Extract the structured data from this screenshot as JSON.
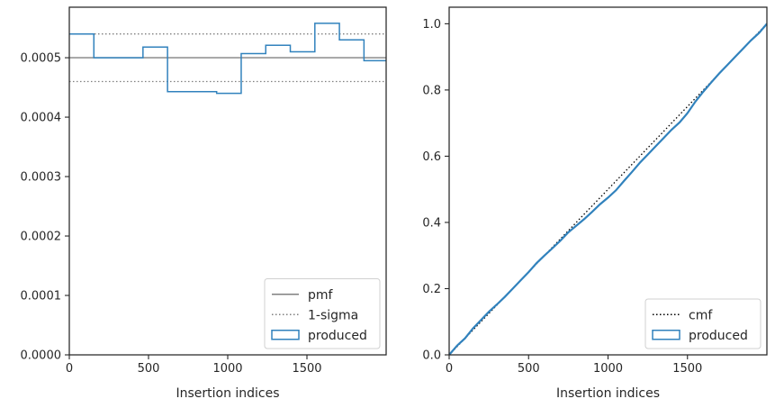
{
  "chart_data": [
    {
      "type": "step",
      "title": "",
      "xlabel": "Insertion indices",
      "ylabel": "",
      "xlim": [
        0,
        2000
      ],
      "ylim": [
        0,
        0.000585
      ],
      "xticks": [
        0,
        500,
        1000,
        1500
      ],
      "xtick_labels": [
        "0",
        "500",
        "1000",
        "1500"
      ],
      "yticks": [
        0,
        0.0001,
        0.0002,
        0.0003,
        0.0004,
        0.0005
      ],
      "ytick_labels": [
        "0.0000",
        "0.0001",
        "0.0002",
        "0.0003",
        "0.0004",
        "0.0005"
      ],
      "grid": false,
      "legend_position": "lower-right",
      "reference_lines": [
        {
          "name": "pmf",
          "y": 0.0005,
          "style": "solid",
          "color": "#808080"
        },
        {
          "name": "1-sigma",
          "y": [
            0.00046,
            0.00054
          ],
          "style": "dotted",
          "color": "#808080"
        }
      ],
      "series": [
        {
          "name": "produced",
          "color": "#3182bd",
          "bin_edges": [
            0,
            155,
            310,
            465,
            620,
            775,
            930,
            1085,
            1240,
            1395,
            1550,
            1705,
            1860,
            2000
          ],
          "values": [
            0.00054,
            0.0005,
            0.0005,
            0.000518,
            0.000443,
            0.000443,
            0.00044,
            0.000507,
            0.000521,
            0.00051,
            0.000558,
            0.00053,
            0.000495
          ]
        }
      ]
    },
    {
      "type": "line",
      "title": "",
      "xlabel": "Insertion indices",
      "ylabel": "",
      "xlim": [
        0,
        2000
      ],
      "ylim": [
        0,
        1.05
      ],
      "xticks": [
        0,
        500,
        1000,
        1500
      ],
      "xtick_labels": [
        "0",
        "500",
        "1000",
        "1500"
      ],
      "yticks": [
        0,
        0.2,
        0.4,
        0.6,
        0.8,
        1.0
      ],
      "ytick_labels": [
        "0.0",
        "0.2",
        "0.4",
        "0.6",
        "0.8",
        "1.0"
      ],
      "grid": false,
      "legend_position": "lower-right",
      "series": [
        {
          "name": "cmf",
          "style": "dotted",
          "color": "#000000",
          "x": [
            0,
            2000
          ],
          "y": [
            0,
            1.0
          ]
        },
        {
          "name": "produced",
          "color": "#3182bd",
          "x": [
            0,
            50,
            100,
            150,
            200,
            250,
            300,
            350,
            400,
            450,
            500,
            550,
            600,
            650,
            700,
            750,
            800,
            850,
            900,
            950,
            1000,
            1050,
            1100,
            1150,
            1200,
            1250,
            1300,
            1350,
            1400,
            1450,
            1500,
            1550,
            1600,
            1650,
            1700,
            1750,
            1800,
            1850,
            1900,
            1950,
            2000
          ],
          "y": [
            0,
            0.028,
            0.05,
            0.08,
            0.105,
            0.13,
            0.152,
            0.175,
            0.2,
            0.225,
            0.25,
            0.277,
            0.3,
            0.322,
            0.345,
            0.37,
            0.39,
            0.41,
            0.432,
            0.455,
            0.475,
            0.497,
            0.525,
            0.552,
            0.58,
            0.605,
            0.63,
            0.655,
            0.68,
            0.702,
            0.73,
            0.765,
            0.795,
            0.823,
            0.85,
            0.875,
            0.9,
            0.925,
            0.95,
            0.972,
            1.0
          ]
        }
      ]
    }
  ]
}
